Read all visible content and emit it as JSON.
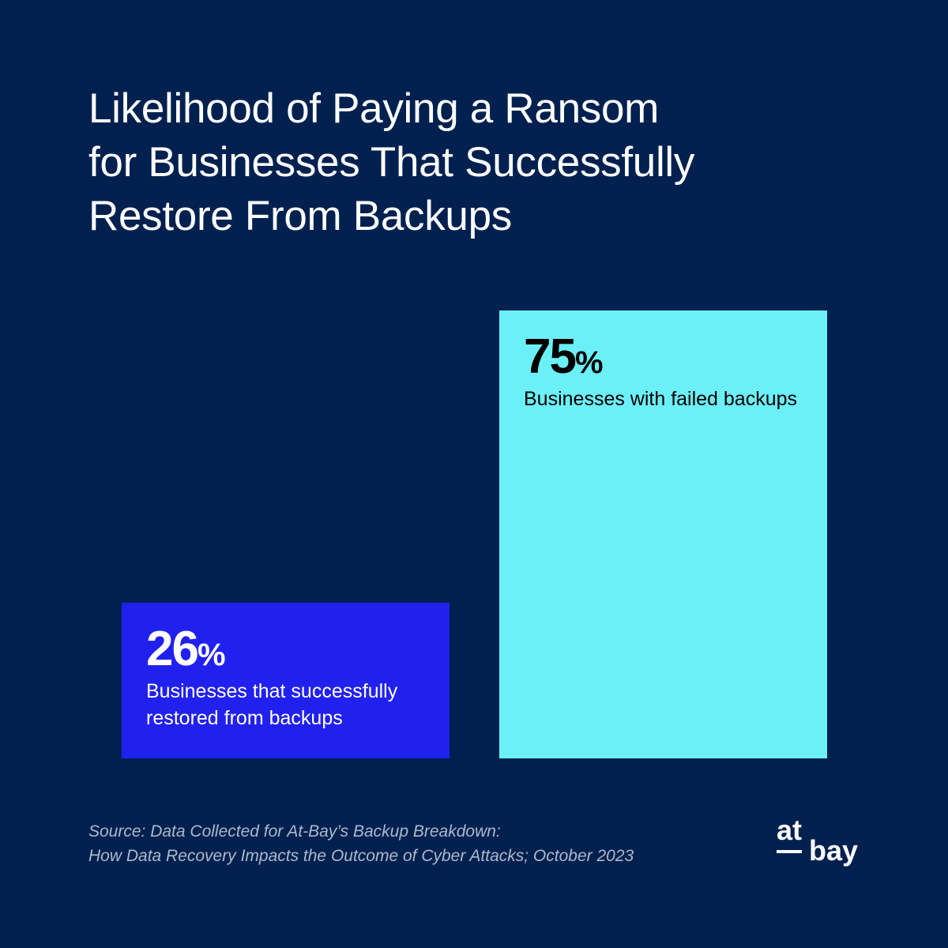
{
  "title": {
    "line1": "Likelihood of Paying a Ransom",
    "line2": "for Businesses That Successfully",
    "line3": "Restore From Backups"
  },
  "chart_data": {
    "type": "bar",
    "categories": [
      "Businesses that successfully restored from backups",
      "Businesses with failed backups"
    ],
    "values": [
      26,
      75
    ],
    "value_suffix": "%",
    "ylim": [
      0,
      100
    ],
    "grid": false,
    "bars": [
      {
        "value": 26,
        "value_text": "26",
        "suffix": "%",
        "label_line1": "Businesses that successfully",
        "label_line2": "restored from backups",
        "color": "#2121ef",
        "text_color": "#ffffff"
      },
      {
        "value": 75,
        "value_text": "75",
        "suffix": "%",
        "label_line1": "Businesses with failed backups",
        "label_line2": "",
        "color": "#6cf0f7",
        "text_color": "#000000"
      }
    ]
  },
  "source": {
    "line1": "Source: Data Collected for At-Bay’s Backup Breakdown:",
    "line2": "How Data Recovery Impacts the Outcome of Cyber Attacks; October 2023"
  },
  "logo": {
    "top": "at",
    "bottom": "bay"
  },
  "colors": {
    "background": "#00214f",
    "bar1": "#2121ef",
    "bar2": "#6cf0f7",
    "source_text": "#aeb8cc"
  }
}
